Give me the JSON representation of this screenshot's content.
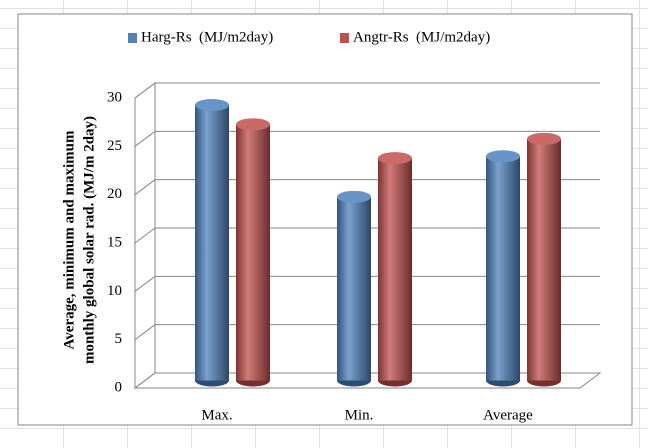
{
  "chart_data": {
    "type": "bar",
    "categories": [
      "Max.",
      "Min.",
      "Average"
    ],
    "series": [
      {
        "name": "Harg-Rs  (MJ/m2day)",
        "color": "#4f81bd",
        "values": [
          28.5,
          19,
          23.2
        ]
      },
      {
        "name": "Angtr-Rs  (MJ/m2day)",
        "color": "#c0504d",
        "values": [
          26.5,
          23,
          25
        ]
      }
    ],
    "ylabel": [
      "Average, minimum and maximum",
      "monthly global solar rad. (MJ/m 2day)"
    ],
    "ylim": [
      0,
      30
    ],
    "yticks": [
      0,
      5,
      10,
      15,
      20,
      25,
      30
    ],
    "grid": true,
    "legend": "top"
  }
}
